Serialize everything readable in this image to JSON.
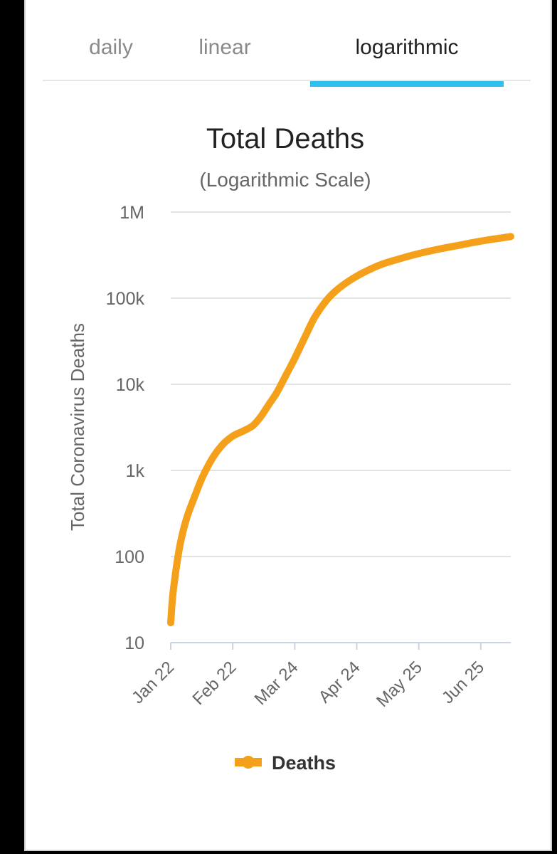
{
  "tabs": [
    {
      "label": "daily",
      "active": false
    },
    {
      "label": "linear",
      "active": false
    },
    {
      "label": "logarithmic",
      "active": true
    }
  ],
  "colors": {
    "accent": "#2ec0ef",
    "series": "#f5a01a",
    "grid": "#e3e3e3"
  },
  "chart_data": {
    "type": "line",
    "title": "Total Deaths",
    "subtitle": "(Logarithmic Scale)",
    "xlabel": "",
    "ylabel": "Total Coronavirus Deaths",
    "yscale": "log",
    "ylim": [
      10,
      1000000
    ],
    "yticks": [
      {
        "value": 10,
        "label": "10"
      },
      {
        "value": 100,
        "label": "100"
      },
      {
        "value": 1000,
        "label": "1k"
      },
      {
        "value": 10000,
        "label": "10k"
      },
      {
        "value": 100000,
        "label": "100k"
      },
      {
        "value": 1000000,
        "label": "1M"
      }
    ],
    "xlim": [
      "2020-01-22",
      "2020-07-10"
    ],
    "xticks": [
      {
        "date": "2020-01-22",
        "label": "Jan 22"
      },
      {
        "date": "2020-02-22",
        "label": "Feb 22"
      },
      {
        "date": "2020-03-24",
        "label": "Mar 24"
      },
      {
        "date": "2020-04-24",
        "label": "Apr 24"
      },
      {
        "date": "2020-05-25",
        "label": "May 25"
      },
      {
        "date": "2020-06-25",
        "label": "Jun 25"
      }
    ],
    "grid": true,
    "legend": "bottom-center",
    "series": [
      {
        "name": "Deaths",
        "points": [
          {
            "date": "2020-01-22",
            "value": 17
          },
          {
            "date": "2020-01-23",
            "value": 35
          },
          {
            "date": "2020-01-25",
            "value": 80
          },
          {
            "date": "2020-01-27",
            "value": 150
          },
          {
            "date": "2020-01-30",
            "value": 280
          },
          {
            "date": "2020-02-03",
            "value": 500
          },
          {
            "date": "2020-02-07",
            "value": 850
          },
          {
            "date": "2020-02-12",
            "value": 1400
          },
          {
            "date": "2020-02-17",
            "value": 2000
          },
          {
            "date": "2020-02-22",
            "value": 2500
          },
          {
            "date": "2020-02-27",
            "value": 2850
          },
          {
            "date": "2020-03-03",
            "value": 3300
          },
          {
            "date": "2020-03-07",
            "value": 4200
          },
          {
            "date": "2020-03-11",
            "value": 5800
          },
          {
            "date": "2020-03-15",
            "value": 8000
          },
          {
            "date": "2020-03-19",
            "value": 12000
          },
          {
            "date": "2020-03-24",
            "value": 20000
          },
          {
            "date": "2020-03-29",
            "value": 35000
          },
          {
            "date": "2020-04-03",
            "value": 60000
          },
          {
            "date": "2020-04-09",
            "value": 95000
          },
          {
            "date": "2020-04-15",
            "value": 130000
          },
          {
            "date": "2020-04-24",
            "value": 180000
          },
          {
            "date": "2020-05-05",
            "value": 240000
          },
          {
            "date": "2020-05-15",
            "value": 285000
          },
          {
            "date": "2020-05-25",
            "value": 330000
          },
          {
            "date": "2020-06-05",
            "value": 375000
          },
          {
            "date": "2020-06-15",
            "value": 415000
          },
          {
            "date": "2020-06-25",
            "value": 460000
          },
          {
            "date": "2020-07-10",
            "value": 520000
          }
        ]
      }
    ]
  }
}
